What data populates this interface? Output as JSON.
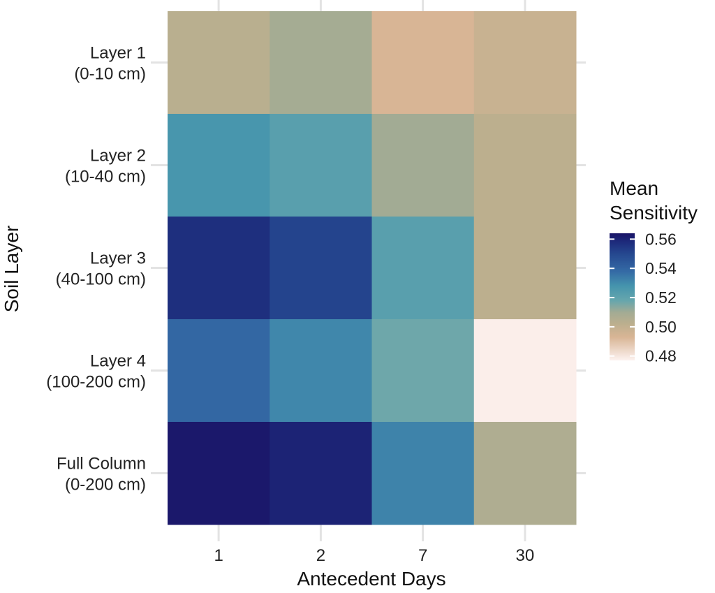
{
  "chart_data": {
    "type": "heatmap",
    "title": "",
    "xlabel": "Antecedent Days",
    "ylabel": "Soil Layer",
    "x": [
      "1",
      "2",
      "7",
      "30"
    ],
    "y": [
      [
        "Layer 1",
        "(0-10 cm)"
      ],
      [
        "Layer 2",
        "(10-40 cm)"
      ],
      [
        "Layer 3",
        "(40-100 cm)"
      ],
      [
        "Layer 4",
        "(100-200 cm)"
      ],
      [
        "Full Column",
        "(0-200 cm)"
      ]
    ],
    "values": [
      [
        0.503,
        0.509,
        0.493,
        0.498
      ],
      [
        0.527,
        0.522,
        0.51,
        0.502
      ],
      [
        0.557,
        0.551,
        0.522,
        0.502
      ],
      [
        0.539,
        0.531,
        0.517,
        0.478
      ],
      [
        0.563,
        0.56,
        0.532,
        0.506
      ]
    ],
    "legend": {
      "title": [
        "Mean",
        "Sensitivity"
      ],
      "ticks": [
        "0.56",
        "0.54",
        "0.52",
        "0.50",
        "0.48"
      ],
      "placement": "right"
    },
    "color_scale": {
      "domain": [
        0.477,
        0.564
      ],
      "stops": [
        {
          "value": 0.477,
          "color": "#fdf2f0"
        },
        {
          "value": 0.493,
          "color": "#d8b595"
        },
        {
          "value": 0.502,
          "color": "#bcaf8e"
        },
        {
          "value": 0.51,
          "color": "#a2ab94"
        },
        {
          "value": 0.518,
          "color": "#66a6ad"
        },
        {
          "value": 0.528,
          "color": "#4594ad"
        },
        {
          "value": 0.538,
          "color": "#346aa5"
        },
        {
          "value": 0.55,
          "color": "#25478f"
        },
        {
          "value": 0.558,
          "color": "#1d2b7c"
        },
        {
          "value": 0.564,
          "color": "#1a1467"
        }
      ]
    },
    "grid": true
  }
}
